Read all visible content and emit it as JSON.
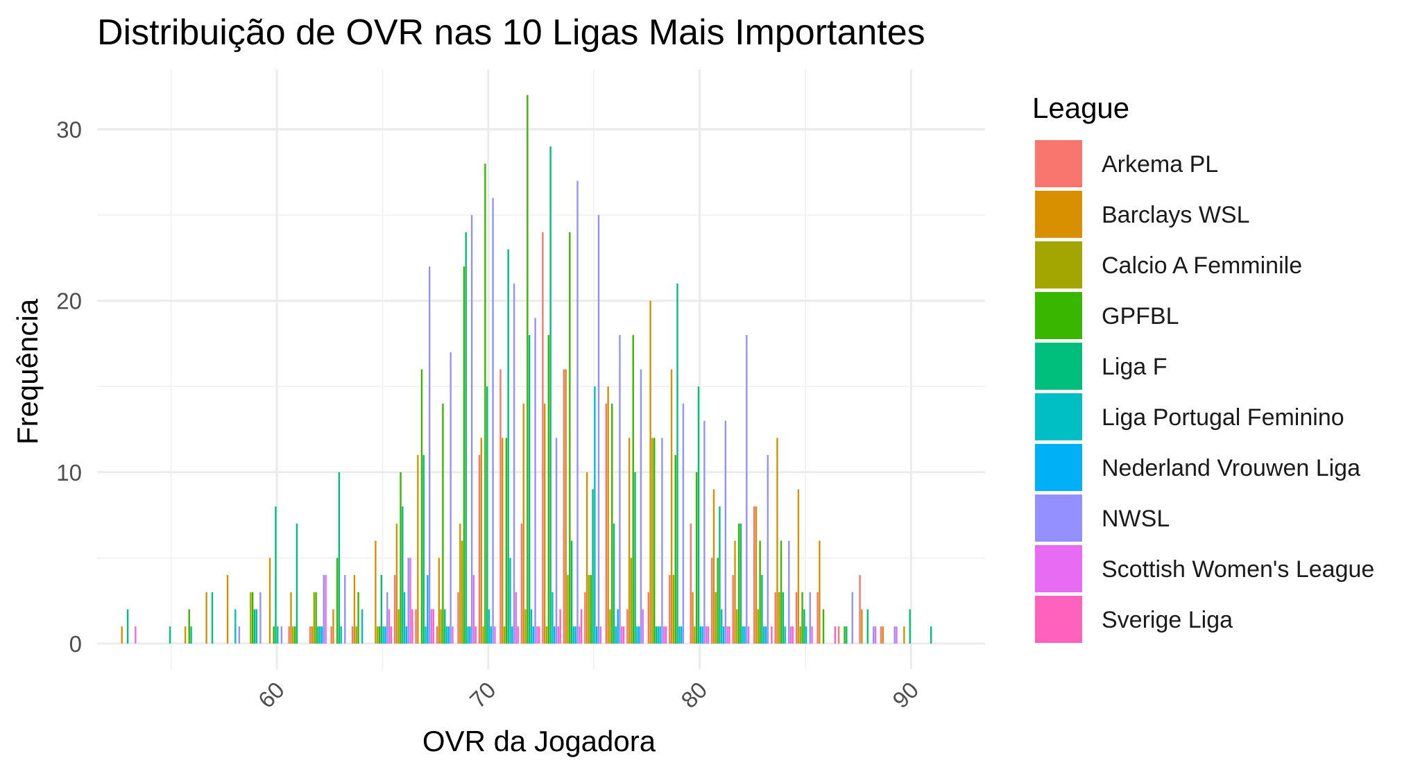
{
  "chart_data": {
    "type": "bar",
    "title": "Distribuição de OVR nas 10 Ligas Mais Importantes",
    "xlabel": "OVR da Jogadora",
    "ylabel": "Frequência",
    "xlim": [
      51.5,
      93.5
    ],
    "ylim": [
      -1.5,
      33.5
    ],
    "x_ticks": [
      "60",
      "70",
      "80",
      "90"
    ],
    "y_ticks": [
      "0",
      "10",
      "20",
      "30"
    ],
    "grid": true,
    "legend_title": "League",
    "legend_position": "right",
    "series": [
      {
        "name": "Arkema PL",
        "color": "#F8766D",
        "points": [
          [
            61,
            1
          ],
          [
            62,
            1
          ],
          [
            63,
            1
          ],
          [
            64,
            1
          ],
          [
            66,
            4
          ],
          [
            67,
            2
          ],
          [
            68,
            1
          ],
          [
            69,
            3
          ],
          [
            70,
            11
          ],
          [
            71,
            16
          ],
          [
            72,
            7
          ],
          [
            73,
            24
          ],
          [
            74,
            16
          ],
          [
            75,
            3
          ],
          [
            76,
            14
          ],
          [
            77,
            2
          ],
          [
            78,
            3
          ],
          [
            79,
            4
          ],
          [
            80,
            7
          ],
          [
            81,
            5
          ],
          [
            82,
            4
          ],
          [
            83,
            8
          ],
          [
            84,
            3
          ],
          [
            85,
            3
          ],
          [
            86,
            3
          ],
          [
            87,
            1
          ],
          [
            88,
            4
          ],
          [
            89,
            1
          ]
        ]
      },
      {
        "name": "Barclays WSL",
        "color": "#D89000",
        "points": [
          [
            53,
            1
          ],
          [
            56,
            1
          ],
          [
            57,
            3
          ],
          [
            58,
            4
          ],
          [
            60,
            5
          ],
          [
            61,
            3
          ],
          [
            62,
            1
          ],
          [
            63,
            2
          ],
          [
            64,
            4
          ],
          [
            65,
            6
          ],
          [
            66,
            7
          ],
          [
            67,
            11
          ],
          [
            68,
            5
          ],
          [
            69,
            7
          ],
          [
            70,
            12
          ],
          [
            71,
            12
          ],
          [
            72,
            14
          ],
          [
            73,
            14
          ],
          [
            74,
            16
          ],
          [
            75,
            10
          ],
          [
            76,
            15
          ],
          [
            77,
            12
          ],
          [
            78,
            20
          ],
          [
            79,
            16
          ],
          [
            80,
            3
          ],
          [
            81,
            9
          ],
          [
            82,
            6
          ],
          [
            83,
            8
          ],
          [
            84,
            12
          ],
          [
            85,
            9
          ],
          [
            86,
            6
          ],
          [
            88,
            2
          ],
          [
            89,
            1
          ],
          [
            90,
            1
          ]
        ]
      },
      {
        "name": "Calcio A Femminile",
        "color": "#A3A500",
        "points": [
          [
            59,
            3
          ],
          [
            61,
            1
          ],
          [
            62,
            3
          ],
          [
            64,
            1
          ],
          [
            65,
            1
          ],
          [
            66,
            2
          ],
          [
            68,
            2
          ],
          [
            69,
            6
          ],
          [
            70,
            1
          ],
          [
            71,
            1
          ],
          [
            72,
            2
          ],
          [
            73,
            1
          ],
          [
            74,
            4
          ],
          [
            75,
            4
          ],
          [
            76,
            2
          ],
          [
            77,
            5
          ],
          [
            78,
            12
          ],
          [
            79,
            4
          ],
          [
            80,
            1
          ],
          [
            81,
            3
          ],
          [
            82,
            2
          ],
          [
            83,
            2
          ],
          [
            84,
            3
          ],
          [
            85,
            1
          ]
        ]
      },
      {
        "name": "GPFBL",
        "color": "#39B600",
        "points": [
          [
            56,
            2
          ],
          [
            59,
            3
          ],
          [
            60,
            1
          ],
          [
            61,
            1
          ],
          [
            62,
            3
          ],
          [
            63,
            5
          ],
          [
            64,
            3
          ],
          [
            65,
            1
          ],
          [
            66,
            10
          ],
          [
            67,
            16
          ],
          [
            68,
            14
          ],
          [
            69,
            22
          ],
          [
            70,
            28
          ],
          [
            71,
            12
          ],
          [
            72,
            32
          ],
          [
            73,
            18
          ],
          [
            74,
            24
          ],
          [
            75,
            4
          ],
          [
            76,
            14
          ],
          [
            77,
            18
          ],
          [
            78,
            12
          ],
          [
            79,
            11
          ],
          [
            80,
            10
          ],
          [
            81,
            5
          ],
          [
            82,
            7
          ],
          [
            83,
            6
          ],
          [
            84,
            6
          ],
          [
            85,
            3
          ],
          [
            86,
            2
          ],
          [
            87,
            1
          ]
        ]
      },
      {
        "name": "Liga F",
        "color": "#00BF7D",
        "points": [
          [
            53,
            2
          ],
          [
            55,
            1
          ],
          [
            56,
            1
          ],
          [
            57,
            3
          ],
          [
            59,
            2
          ],
          [
            60,
            8
          ],
          [
            61,
            7
          ],
          [
            62,
            1
          ],
          [
            63,
            10
          ],
          [
            65,
            4
          ],
          [
            66,
            8
          ],
          [
            67,
            11
          ],
          [
            68,
            2
          ],
          [
            69,
            24
          ],
          [
            70,
            15
          ],
          [
            71,
            23
          ],
          [
            72,
            18
          ],
          [
            73,
            29
          ],
          [
            74,
            6
          ],
          [
            75,
            9
          ],
          [
            76,
            7
          ],
          [
            77,
            10
          ],
          [
            78,
            1
          ],
          [
            79,
            21
          ],
          [
            80,
            15
          ],
          [
            81,
            8
          ],
          [
            82,
            7
          ],
          [
            83,
            4
          ],
          [
            84,
            3
          ],
          [
            85,
            2
          ],
          [
            87,
            1
          ],
          [
            88,
            2
          ],
          [
            90,
            2
          ],
          [
            91,
            1
          ]
        ]
      },
      {
        "name": "Liga Portugal Feminino",
        "color": "#00BFC4",
        "points": [
          [
            58,
            2
          ],
          [
            59,
            2
          ],
          [
            60,
            1
          ],
          [
            62,
            1
          ],
          [
            63,
            1
          ],
          [
            64,
            2
          ],
          [
            65,
            1
          ],
          [
            66,
            3
          ],
          [
            67,
            1
          ],
          [
            68,
            1
          ],
          [
            69,
            1
          ],
          [
            70,
            2
          ],
          [
            71,
            5
          ],
          [
            72,
            2
          ],
          [
            73,
            3
          ],
          [
            74,
            1
          ],
          [
            75,
            15
          ],
          [
            76,
            1
          ],
          [
            77,
            1
          ],
          [
            78,
            1
          ],
          [
            79,
            1
          ],
          [
            80,
            1
          ],
          [
            81,
            2
          ],
          [
            82,
            1
          ],
          [
            83,
            1
          ],
          [
            84,
            1
          ],
          [
            85,
            1
          ]
        ]
      },
      {
        "name": "Nederland Vrouwen Liga",
        "color": "#00B0F6",
        "points": [
          [
            62,
            1
          ],
          [
            65,
            1
          ],
          [
            66,
            1
          ],
          [
            67,
            4
          ],
          [
            68,
            1
          ],
          [
            69,
            1
          ],
          [
            70,
            1
          ],
          [
            71,
            1
          ],
          [
            72,
            1
          ],
          [
            73,
            1
          ],
          [
            74,
            1
          ],
          [
            75,
            1
          ],
          [
            76,
            2
          ],
          [
            77,
            1
          ],
          [
            78,
            1
          ],
          [
            79,
            1
          ],
          [
            80,
            1
          ],
          [
            81,
            1
          ],
          [
            82,
            1
          ],
          [
            83,
            1
          ]
        ]
      },
      {
        "name": "NWSL",
        "color": "#9590FF",
        "points": [
          [
            58,
            1
          ],
          [
            59,
            3
          ],
          [
            60,
            1
          ],
          [
            62,
            4
          ],
          [
            63,
            4
          ],
          [
            65,
            3
          ],
          [
            66,
            5
          ],
          [
            67,
            22
          ],
          [
            68,
            17
          ],
          [
            69,
            25
          ],
          [
            70,
            26
          ],
          [
            71,
            21
          ],
          [
            72,
            19
          ],
          [
            73,
            12
          ],
          [
            74,
            27
          ],
          [
            75,
            25
          ],
          [
            76,
            18
          ],
          [
            77,
            16
          ],
          [
            78,
            12
          ],
          [
            79,
            14
          ],
          [
            80,
            13
          ],
          [
            81,
            13
          ],
          [
            82,
            18
          ],
          [
            83,
            11
          ],
          [
            84,
            6
          ],
          [
            85,
            3
          ],
          [
            87,
            3
          ],
          [
            88,
            1
          ],
          [
            89,
            1
          ]
        ]
      },
      {
        "name": "Scottish Women's League",
        "color": "#E76BF3",
        "points": [
          [
            53,
            1
          ],
          [
            62,
            4
          ],
          [
            65,
            2
          ],
          [
            66,
            5
          ],
          [
            67,
            2
          ],
          [
            68,
            1
          ],
          [
            69,
            4
          ],
          [
            70,
            1
          ],
          [
            71,
            3
          ],
          [
            72,
            1
          ],
          [
            73,
            1
          ],
          [
            74,
            1
          ],
          [
            75,
            1
          ],
          [
            76,
            1
          ],
          [
            77,
            2
          ],
          [
            78,
            1
          ],
          [
            80,
            1
          ],
          [
            81,
            1
          ],
          [
            82,
            1
          ],
          [
            84,
            1
          ],
          [
            85,
            1
          ],
          [
            88,
            1
          ],
          [
            89,
            1
          ]
        ]
      },
      {
        "name": "Sverige Liga",
        "color": "#FF62BC",
        "points": [
          [
            65,
            1
          ],
          [
            66,
            2
          ],
          [
            67,
            2
          ],
          [
            69,
            1
          ],
          [
            71,
            1
          ],
          [
            72,
            1
          ],
          [
            73,
            2
          ],
          [
            74,
            2
          ],
          [
            76,
            1
          ],
          [
            78,
            1
          ],
          [
            80,
            1
          ],
          [
            81,
            1
          ],
          [
            83,
            1
          ],
          [
            84,
            1
          ],
          [
            86,
            1
          ]
        ]
      }
    ]
  }
}
